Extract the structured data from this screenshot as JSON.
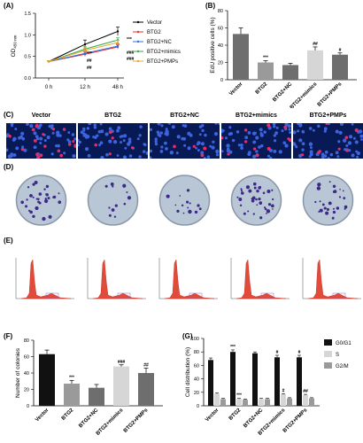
{
  "panels": {
    "a": "(A)",
    "b": "(B)",
    "c": "(C)",
    "d": "(D)",
    "e": "(E)",
    "f": "(F)",
    "g": "(G)"
  },
  "groups": [
    "Vector",
    "BTG2",
    "BTG2+NC",
    "BTG2+mimics",
    "BTG2+PMPs"
  ],
  "colors": {
    "vector": "#000000",
    "btg2": "#e8312f",
    "nc": "#2f6fdc",
    "mimics": "#3aa845",
    "pmps": "#f0a32c",
    "bar_black": "#111111",
    "bar_gray": "#9a9a9a",
    "bar_light": "#d6d6d6",
    "bar_mid": "#6e6e6e",
    "nuclei": "#3c63e0",
    "edu": "#e0306a",
    "colony": "#3b2a86",
    "dish_bg": "#b9c6d6",
    "flow_fill": "#e24a3a"
  },
  "chart_data": [
    {
      "panel": "A",
      "type": "line",
      "ylabel": "OD450 nm",
      "ylabel_main": "OD",
      "ylabel_sub": "450 nm",
      "x": [
        "0 h",
        "12 h",
        "48 h"
      ],
      "ylim": [
        0.0,
        1.5
      ],
      "yticks": [
        "0.0",
        "0.5",
        "1.0",
        "1.5"
      ],
      "series": [
        {
          "name": "Vector",
          "values": [
            0.38,
            0.78,
            1.08
          ],
          "color": "#000000"
        },
        {
          "name": "BTG2",
          "values": [
            0.38,
            0.55,
            0.72
          ],
          "color": "#e8312f"
        },
        {
          "name": "BTG2+NC",
          "values": [
            0.38,
            0.57,
            0.74
          ],
          "color": "#2f6fdc"
        },
        {
          "name": "BTG2+mimics",
          "values": [
            0.38,
            0.67,
            0.88
          ],
          "color": "#3aa845"
        },
        {
          "name": "BTG2+PMPs",
          "values": [
            0.38,
            0.64,
            0.82
          ],
          "color": "#f0a32c"
        }
      ],
      "annotations": [
        "***",
        "##",
        "##",
        "***",
        "###",
        "###"
      ]
    },
    {
      "panel": "B",
      "type": "bar",
      "ylabel": "EdU positive cells (%)",
      "categories": [
        "Vector",
        "BTG2",
        "BTG2+NC",
        "BTG2+mimics",
        "BTG2+PMPs"
      ],
      "values": [
        53,
        20,
        17,
        34,
        29
      ],
      "errors": [
        7,
        2,
        2,
        4,
        2
      ],
      "ylim": [
        0,
        80
      ],
      "yticks": [
        "0",
        "20",
        "40",
        "60",
        "80"
      ],
      "annotations": [
        "",
        "***",
        "",
        "##",
        "#"
      ]
    },
    {
      "panel": "F",
      "type": "bar",
      "ylabel": "Number of colonies",
      "categories": [
        "Vector",
        "BTG2",
        "BTG2+NC",
        "BTG2+mimics",
        "BTG2+PMPs"
      ],
      "values": [
        63,
        27,
        22,
        48,
        40
      ],
      "errors": [
        5,
        4,
        4,
        2,
        6
      ],
      "ylim": [
        0,
        80
      ],
      "yticks": [
        "0",
        "20",
        "40",
        "60",
        "80"
      ],
      "annotations": [
        "",
        "***",
        "",
        "###",
        "##"
      ]
    },
    {
      "panel": "G",
      "type": "bar",
      "ylabel": "Cell distribution (%)",
      "categories": [
        "Vector",
        "BTG2",
        "BTG2+NC",
        "BTG2+mimics",
        "BTG2+PMPs"
      ],
      "series": [
        {
          "name": "G0/G1",
          "values": [
            68,
            80,
            78,
            72,
            72
          ],
          "errors": [
            3,
            3,
            2,
            3,
            3
          ]
        },
        {
          "name": "S",
          "values": [
            18,
            10,
            10,
            17,
            16
          ],
          "errors": [
            1,
            1,
            1,
            1,
            1
          ]
        },
        {
          "name": "G2/M",
          "values": [
            10,
            9,
            10,
            11,
            11
          ],
          "errors": [
            1,
            1,
            1,
            1,
            1
          ]
        }
      ],
      "ylim": [
        0,
        100
      ],
      "yticks": [
        "0",
        "20",
        "40",
        "60",
        "80",
        "100"
      ],
      "annotations": [
        "",
        "***",
        "",
        "#",
        "#"
      ],
      "annotations_s": [
        "",
        "***",
        "",
        "#",
        "##"
      ],
      "legend_position": "right"
    }
  ]
}
